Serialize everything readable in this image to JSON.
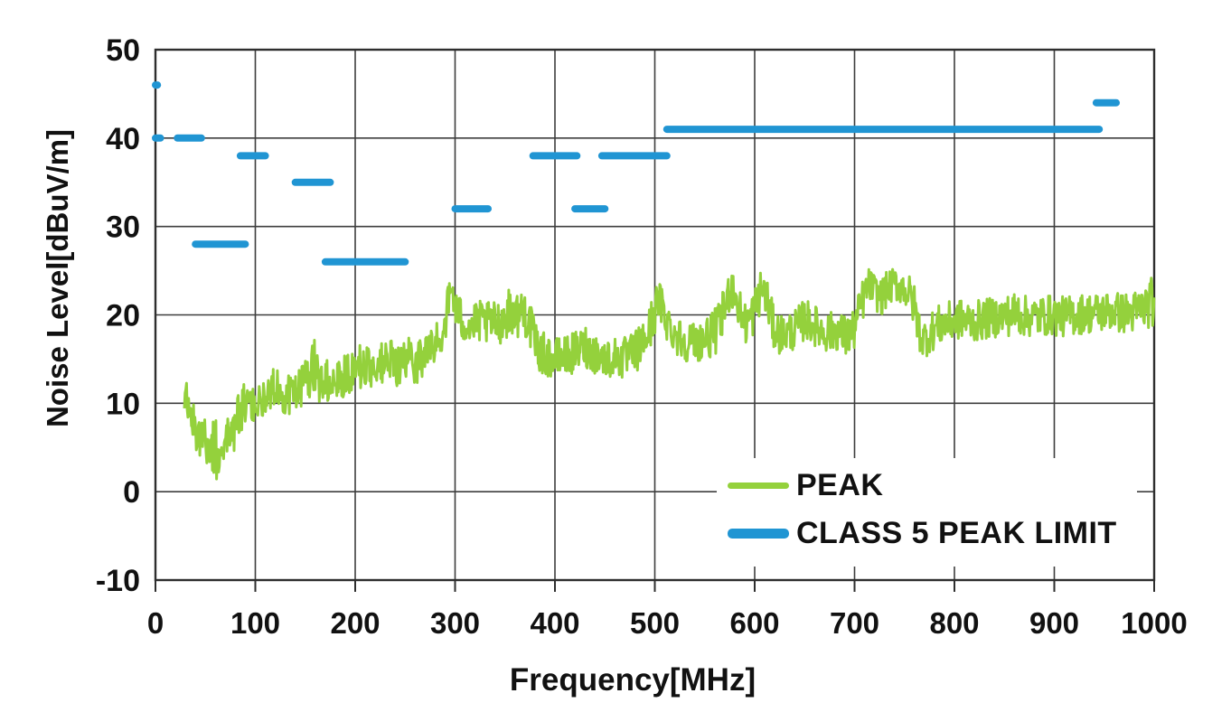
{
  "chart_data": {
    "type": "line",
    "title": "",
    "xlabel": "Frequency[MHz]",
    "ylabel": "Noise Level[dBuV/m]",
    "xlim": [
      0,
      1000
    ],
    "ylim": [
      -10,
      50
    ],
    "x_ticks": [
      0,
      100,
      200,
      300,
      400,
      500,
      600,
      700,
      800,
      900,
      1000
    ],
    "y_ticks": [
      50,
      40,
      30,
      20,
      10,
      0,
      -10
    ],
    "grid": true,
    "grid_color": "#3d3d3d",
    "axis_color": "#2e2e2e",
    "background": "#ffffff",
    "legend": {
      "position": "inside bottom-right",
      "background": "#ffffff"
    },
    "series": [
      {
        "name": "PEAK",
        "color": "#94d13c",
        "style": "noisy line",
        "anchors_format": "[MHz, mean dBuV/m, +/- band dBuV/m]",
        "anchors": [
          [
            29,
            11,
            2
          ],
          [
            33,
            9.5,
            2.2
          ],
          [
            38,
            7.5,
            2.4
          ],
          [
            44,
            6.5,
            2.5
          ],
          [
            50,
            6,
            2.8
          ],
          [
            55,
            4.8,
            3
          ],
          [
            60,
            4.5,
            4.2
          ],
          [
            66,
            5.5,
            2.6
          ],
          [
            72,
            6,
            2.4
          ],
          [
            78,
            7,
            2.6
          ],
          [
            84,
            8.5,
            2.8
          ],
          [
            90,
            10,
            2.6
          ],
          [
            96,
            9.5,
            2.2
          ],
          [
            102,
            9.8,
            2.2
          ],
          [
            108,
            10.5,
            2.2
          ],
          [
            115,
            11.5,
            2.2
          ],
          [
            122,
            12,
            2.2
          ],
          [
            128,
            11,
            2.2
          ],
          [
            134,
            10.8,
            2.3
          ],
          [
            140,
            11.5,
            2.3
          ],
          [
            147,
            12,
            2.5
          ],
          [
            153,
            12.5,
            2.8
          ],
          [
            158,
            15,
            4.2
          ],
          [
            162,
            13,
            2.8
          ],
          [
            168,
            12.5,
            2.6
          ],
          [
            175,
            12.8,
            2.8
          ],
          [
            182,
            13,
            2.6
          ],
          [
            190,
            13.5,
            2.8
          ],
          [
            197,
            13.8,
            3
          ],
          [
            204,
            14,
            2.6
          ],
          [
            212,
            14,
            2.5
          ],
          [
            220,
            14.3,
            2.5
          ],
          [
            228,
            14.5,
            2.5
          ],
          [
            237,
            14.5,
            2.6
          ],
          [
            246,
            14.5,
            2.6
          ],
          [
            255,
            14.8,
            2.7
          ],
          [
            264,
            15,
            2.7
          ],
          [
            272,
            15.8,
            2.6
          ],
          [
            280,
            16.5,
            2.6
          ],
          [
            287,
            18,
            2.6
          ],
          [
            293,
            21,
            2.6
          ],
          [
            297,
            23,
            2.4
          ],
          [
            301,
            20.5,
            2.5
          ],
          [
            306,
            19.5,
            2.5
          ],
          [
            312,
            19,
            2.4
          ],
          [
            318,
            18.8,
            2.4
          ],
          [
            325,
            19.2,
            2.4
          ],
          [
            332,
            19,
            2.4
          ],
          [
            340,
            19,
            2.5
          ],
          [
            348,
            19.5,
            2.6
          ],
          [
            356,
            20.5,
            2.7
          ],
          [
            363,
            20,
            2.6
          ],
          [
            369,
            20.5,
            2.8
          ],
          [
            373,
            20,
            3.2
          ],
          [
            378,
            17.5,
            2.6
          ],
          [
            384,
            16,
            2.4
          ],
          [
            390,
            15.5,
            2.4
          ],
          [
            398,
            15,
            2.4
          ],
          [
            406,
            15.2,
            2.3
          ],
          [
            414,
            15.5,
            2.3
          ],
          [
            422,
            15.8,
            2.4
          ],
          [
            430,
            16.5,
            2.5
          ],
          [
            438,
            15.8,
            2.3
          ],
          [
            446,
            15.2,
            2.3
          ],
          [
            454,
            15,
            2.3
          ],
          [
            462,
            15.3,
            2.3
          ],
          [
            470,
            15,
            2.5
          ],
          [
            478,
            15.5,
            2.5
          ],
          [
            486,
            16.5,
            2.5
          ],
          [
            494,
            18,
            2.7
          ],
          [
            500,
            20.5,
            2.7
          ],
          [
            505,
            21.5,
            2.4
          ],
          [
            510,
            20,
            2.5
          ],
          [
            516,
            18.5,
            2.4
          ],
          [
            524,
            17.5,
            2.3
          ],
          [
            532,
            17,
            2.3
          ],
          [
            541,
            17,
            2.3
          ],
          [
            550,
            17.2,
            2.4
          ],
          [
            558,
            17.8,
            2.5
          ],
          [
            566,
            19,
            2.8
          ],
          [
            572,
            21.5,
            2.8
          ],
          [
            576,
            23.5,
            2.4
          ],
          [
            580,
            22.5,
            2.5
          ],
          [
            585,
            20.5,
            2.5
          ],
          [
            590,
            19,
            2.5
          ],
          [
            595,
            19.5,
            2.6
          ],
          [
            600,
            20.5,
            2.7
          ],
          [
            605,
            22.5,
            2.5
          ],
          [
            609,
            23,
            2.4
          ],
          [
            614,
            21,
            2.5
          ],
          [
            619,
            18.5,
            2.4
          ],
          [
            626,
            17.8,
            2.3
          ],
          [
            634,
            18,
            2.3
          ],
          [
            642,
            18.5,
            2.3
          ],
          [
            650,
            19.5,
            2.4
          ],
          [
            658,
            19,
            2.3
          ],
          [
            666,
            18.3,
            2.3
          ],
          [
            674,
            18,
            2.3
          ],
          [
            682,
            18.3,
            2.3
          ],
          [
            690,
            17.5,
            2.5
          ],
          [
            697,
            17.8,
            2.5
          ],
          [
            703,
            19.5,
            2.6
          ],
          [
            709,
            22,
            2.4
          ],
          [
            715,
            23.5,
            1.9
          ],
          [
            721,
            22.5,
            2
          ],
          [
            727,
            22,
            2.1
          ],
          [
            733,
            23,
            2
          ],
          [
            740,
            23.5,
            1.9
          ],
          [
            747,
            23.2,
            2
          ],
          [
            754,
            22.5,
            2.2
          ],
          [
            760,
            21,
            2.4
          ],
          [
            764,
            18.5,
            2.4
          ],
          [
            769,
            17.2,
            2.2
          ],
          [
            776,
            18,
            2.3
          ],
          [
            784,
            18.8,
            2.3
          ],
          [
            794,
            19.2,
            2.3
          ],
          [
            805,
            19.5,
            2.3
          ],
          [
            818,
            19.2,
            2.3
          ],
          [
            830,
            19.5,
            2.3
          ],
          [
            843,
            19.8,
            2.3
          ],
          [
            856,
            20,
            2.4
          ],
          [
            864,
            20.3,
            2.6
          ],
          [
            872,
            19.8,
            2.3
          ],
          [
            884,
            19.8,
            2.3
          ],
          [
            896,
            20,
            2.3
          ],
          [
            908,
            19.8,
            2.3
          ],
          [
            920,
            20,
            2.3
          ],
          [
            932,
            20.2,
            2.3
          ],
          [
            944,
            20.2,
            2.3
          ],
          [
            956,
            20.5,
            2.3
          ],
          [
            968,
            20.2,
            2.3
          ],
          [
            980,
            20.3,
            2.4
          ],
          [
            990,
            20.8,
            2.6
          ],
          [
            997,
            21.5,
            2.8
          ],
          [
            1000,
            21,
            2.5
          ]
        ]
      },
      {
        "name": "CLASS 5 PEAK LIMIT",
        "color": "#2095d3",
        "style": "horizontal segments",
        "segments_format": "[start MHz, end MHz, limit dBuV/m]",
        "segments": [
          [
            0,
            2,
            46
          ],
          [
            0,
            5,
            40
          ],
          [
            22,
            46,
            40
          ],
          [
            40,
            90,
            28
          ],
          [
            85,
            110,
            38
          ],
          [
            140,
            175,
            35
          ],
          [
            170,
            250,
            26
          ],
          [
            300,
            333,
            32
          ],
          [
            378,
            422,
            38
          ],
          [
            420,
            450,
            32
          ],
          [
            447,
            512,
            38
          ],
          [
            512,
            945,
            41
          ],
          [
            942,
            962,
            44
          ]
        ]
      }
    ]
  }
}
